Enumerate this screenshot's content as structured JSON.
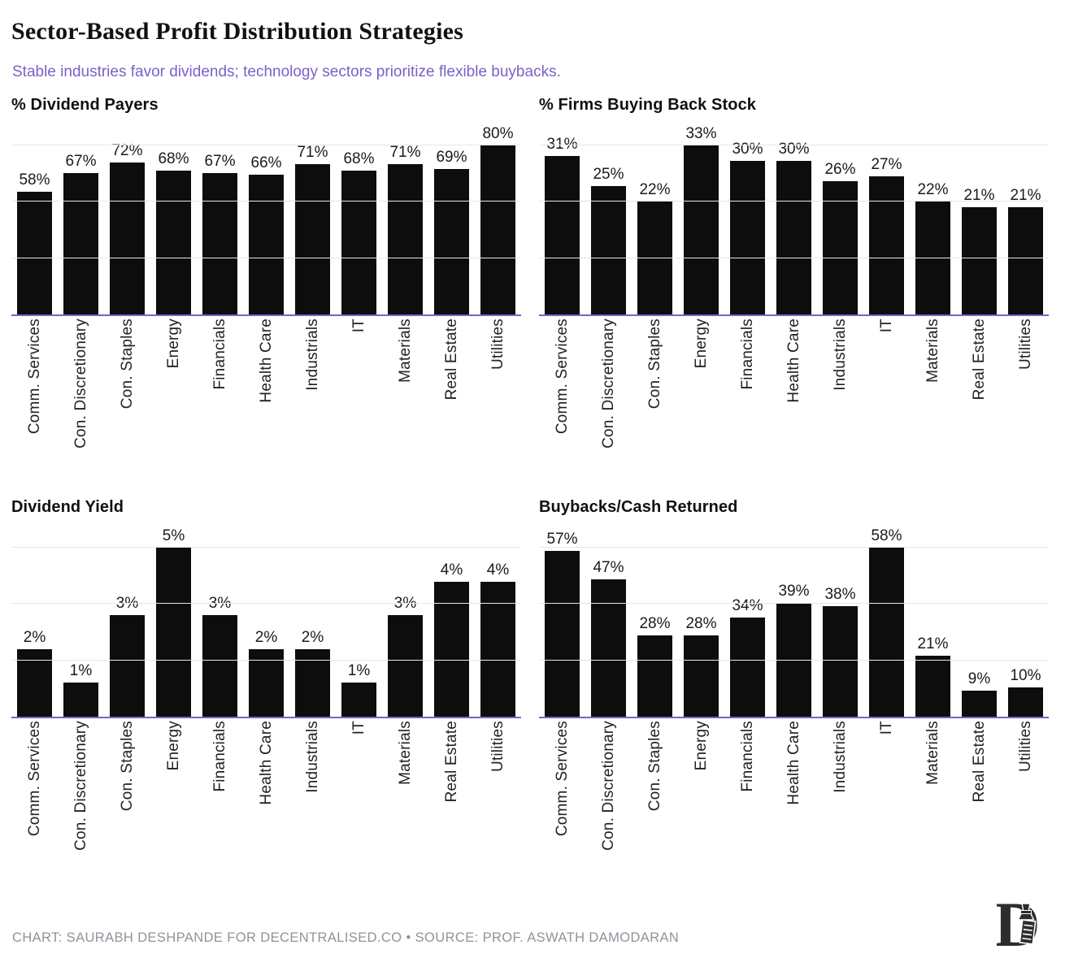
{
  "header": {
    "title": "Sector-Based Profit Distribution Strategies",
    "subtitle": "Stable industries favor dividends; technology sectors prioritize flexible buybacks."
  },
  "chart_data": [
    {
      "type": "bar",
      "title": "% Dividend Payers",
      "categories": [
        "Comm. Services",
        "Con. Discretionary",
        "Con. Staples",
        "Energy",
        "Financials",
        "Health Care",
        "Industrials",
        "IT",
        "Materials",
        "Real Estate",
        "Utilities"
      ],
      "values": [
        58,
        67,
        72,
        68,
        67,
        66,
        71,
        68,
        71,
        69,
        80
      ],
      "labels": [
        "58%",
        "67%",
        "72%",
        "68%",
        "67%",
        "66%",
        "71%",
        "68%",
        "71%",
        "69%",
        "80%"
      ],
      "unit": "%",
      "ylim": [
        0,
        80
      ],
      "grid": "on",
      "legend": "none",
      "xlabel": "",
      "ylabel": ""
    },
    {
      "type": "bar",
      "title": "% Firms Buying Back Stock",
      "categories": [
        "Comm. Services",
        "Con. Discretionary",
        "Con. Staples",
        "Energy",
        "Financials",
        "Health Care",
        "Industrials",
        "IT",
        "Materials",
        "Real Estate",
        "Utilities"
      ],
      "values": [
        31,
        25,
        22,
        33,
        30,
        30,
        26,
        27,
        22,
        21,
        21
      ],
      "labels": [
        "31%",
        "25%",
        "22%",
        "33%",
        "30%",
        "30%",
        "26%",
        "27%",
        "22%",
        "21%",
        "21%"
      ],
      "unit": "%",
      "ylim": [
        0,
        33
      ],
      "grid": "on",
      "legend": "none",
      "xlabel": "",
      "ylabel": ""
    },
    {
      "type": "bar",
      "title": "Dividend Yield",
      "categories": [
        "Comm. Services",
        "Con. Discretionary",
        "Con. Staples",
        "Energy",
        "Financials",
        "Health Care",
        "Industrials",
        "IT",
        "Materials",
        "Real Estate",
        "Utilities"
      ],
      "values": [
        2,
        1,
        3,
        5,
        3,
        2,
        2,
        1,
        3,
        4,
        4
      ],
      "labels": [
        "2%",
        "1%",
        "3%",
        "5%",
        "3%",
        "2%",
        "2%",
        "1%",
        "3%",
        "4%",
        "4%"
      ],
      "unit": "%",
      "ylim": [
        0,
        5
      ],
      "grid": "on",
      "legend": "none",
      "xlabel": "",
      "ylabel": ""
    },
    {
      "type": "bar",
      "title": "Buybacks/Cash Returned",
      "categories": [
        "Comm. Services",
        "Con. Discretionary",
        "Con. Staples",
        "Energy",
        "Financials",
        "Health Care",
        "Industrials",
        "IT",
        "Materials",
        "Real Estate",
        "Utilities"
      ],
      "values": [
        57,
        47,
        28,
        28,
        34,
        39,
        38,
        58,
        21,
        9,
        10
      ],
      "labels": [
        "57%",
        "47%",
        "28%",
        "28%",
        "34%",
        "39%",
        "38%",
        "58%",
        "21%",
        "9%",
        "10%"
      ],
      "unit": "%",
      "ylim": [
        0,
        58
      ],
      "grid": "on",
      "legend": "none",
      "xlabel": "",
      "ylabel": ""
    }
  ],
  "footer": {
    "credit": "CHART: SAURABH DESHPANDE FOR DECENTRALISED.CO • SOURCE: PROF. ASWATH DAMODARAN",
    "logo": "decentralised-d-logo"
  },
  "colors": {
    "bar": "#0d0d0d",
    "accent_purple": "#7b61c8",
    "gridline": "#e7e7e7",
    "subtitle_text": "#7b61c8",
    "footer_text": "#8f939b"
  }
}
